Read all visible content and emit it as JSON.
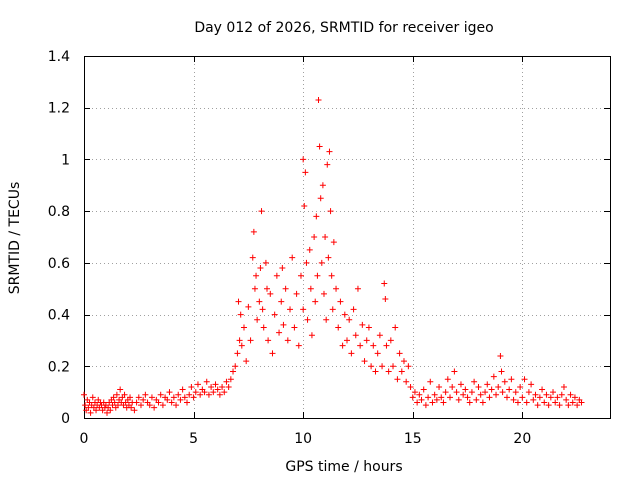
{
  "chart_data": {
    "type": "scatter",
    "title": "Day 012 of 2026, SRMTID for receiver igeo",
    "xlabel": "GPS time / hours",
    "ylabel": "SRMTID / TECUs",
    "xlim": [
      0,
      24
    ],
    "ylim": [
      0,
      1.4
    ],
    "xticks": [
      0,
      5,
      10,
      15,
      20
    ],
    "yticks": [
      0,
      0.2,
      0.4,
      0.6,
      0.8,
      1,
      1.2,
      1.4
    ],
    "xtick_labels": [
      "0",
      "5",
      "10",
      "15",
      "20"
    ],
    "ytick_labels": [
      "0",
      "0.2",
      "0.4",
      "0.6",
      "0.8",
      "1",
      "1.2",
      "1.4"
    ],
    "grid": true,
    "marker": "+",
    "color": "#ff0000",
    "series": [
      {
        "name": "SRMTID",
        "points": [
          [
            0.0,
            0.09
          ],
          [
            0.05,
            0.05
          ],
          [
            0.1,
            0.03
          ],
          [
            0.15,
            0.07
          ],
          [
            0.2,
            0.04
          ],
          [
            0.25,
            0.06
          ],
          [
            0.3,
            0.02
          ],
          [
            0.35,
            0.05
          ],
          [
            0.4,
            0.08
          ],
          [
            0.45,
            0.04
          ],
          [
            0.5,
            0.06
          ],
          [
            0.55,
            0.03
          ],
          [
            0.6,
            0.05
          ],
          [
            0.65,
            0.07
          ],
          [
            0.7,
            0.04
          ],
          [
            0.75,
            0.06
          ],
          [
            0.8,
            0.05
          ],
          [
            0.85,
            0.03
          ],
          [
            0.9,
            0.06
          ],
          [
            0.95,
            0.04
          ],
          [
            1.0,
            0.05
          ],
          [
            1.05,
            0.02
          ],
          [
            1.1,
            0.04
          ],
          [
            1.15,
            0.06
          ],
          [
            1.2,
            0.03
          ],
          [
            1.25,
            0.07
          ],
          [
            1.3,
            0.05
          ],
          [
            1.35,
            0.08
          ],
          [
            1.4,
            0.06
          ],
          [
            1.45,
            0.04
          ],
          [
            1.5,
            0.09
          ],
          [
            1.55,
            0.05
          ],
          [
            1.6,
            0.07
          ],
          [
            1.65,
            0.11
          ],
          [
            1.7,
            0.06
          ],
          [
            1.75,
            0.08
          ],
          [
            1.8,
            0.05
          ],
          [
            1.85,
            0.09
          ],
          [
            1.9,
            0.06
          ],
          [
            1.95,
            0.04
          ],
          [
            2.0,
            0.07
          ],
          [
            2.05,
            0.05
          ],
          [
            2.1,
            0.08
          ],
          [
            2.15,
            0.04
          ],
          [
            2.2,
            0.06
          ],
          [
            2.3,
            0.03
          ],
          [
            2.4,
            0.06
          ],
          [
            2.5,
            0.08
          ],
          [
            2.6,
            0.05
          ],
          [
            2.7,
            0.07
          ],
          [
            2.8,
            0.09
          ],
          [
            2.9,
            0.06
          ],
          [
            3.0,
            0.05
          ],
          [
            3.1,
            0.08
          ],
          [
            3.2,
            0.04
          ],
          [
            3.3,
            0.07
          ],
          [
            3.4,
            0.06
          ],
          [
            3.5,
            0.09
          ],
          [
            3.6,
            0.05
          ],
          [
            3.7,
            0.08
          ],
          [
            3.8,
            0.07
          ],
          [
            3.9,
            0.1
          ],
          [
            4.0,
            0.06
          ],
          [
            4.1,
            0.08
          ],
          [
            4.2,
            0.05
          ],
          [
            4.3,
            0.09
          ],
          [
            4.4,
            0.07
          ],
          [
            4.5,
            0.11
          ],
          [
            4.6,
            0.08
          ],
          [
            4.7,
            0.06
          ],
          [
            4.8,
            0.09
          ],
          [
            4.9,
            0.12
          ],
          [
            5.0,
            0.08
          ],
          [
            5.1,
            0.1
          ],
          [
            5.2,
            0.13
          ],
          [
            5.3,
            0.09
          ],
          [
            5.4,
            0.11
          ],
          [
            5.5,
            0.1
          ],
          [
            5.6,
            0.14
          ],
          [
            5.7,
            0.09
          ],
          [
            5.8,
            0.12
          ],
          [
            5.9,
            0.1
          ],
          [
            6.0,
            0.13
          ],
          [
            6.1,
            0.11
          ],
          [
            6.2,
            0.09
          ],
          [
            6.3,
            0.12
          ],
          [
            6.4,
            0.1
          ],
          [
            6.5,
            0.14
          ],
          [
            6.6,
            0.12
          ],
          [
            6.7,
            0.15
          ],
          [
            6.8,
            0.18
          ],
          [
            6.9,
            0.2
          ],
          [
            7.0,
            0.25
          ],
          [
            7.05,
            0.45
          ],
          [
            7.1,
            0.3
          ],
          [
            7.15,
            0.4
          ],
          [
            7.2,
            0.28
          ],
          [
            7.3,
            0.35
          ],
          [
            7.4,
            0.22
          ],
          [
            7.5,
            0.43
          ],
          [
            7.6,
            0.3
          ],
          [
            7.7,
            0.62
          ],
          [
            7.75,
            0.72
          ],
          [
            7.8,
            0.5
          ],
          [
            7.85,
            0.55
          ],
          [
            7.9,
            0.38
          ],
          [
            8.0,
            0.45
          ],
          [
            8.05,
            0.58
          ],
          [
            8.1,
            0.8
          ],
          [
            8.15,
            0.42
          ],
          [
            8.2,
            0.35
          ],
          [
            8.3,
            0.6
          ],
          [
            8.35,
            0.5
          ],
          [
            8.4,
            0.3
          ],
          [
            8.5,
            0.48
          ],
          [
            8.6,
            0.25
          ],
          [
            8.7,
            0.4
          ],
          [
            8.8,
            0.55
          ],
          [
            8.9,
            0.33
          ],
          [
            9.0,
            0.45
          ],
          [
            9.05,
            0.58
          ],
          [
            9.1,
            0.36
          ],
          [
            9.2,
            0.5
          ],
          [
            9.3,
            0.3
          ],
          [
            9.4,
            0.42
          ],
          [
            9.5,
            0.62
          ],
          [
            9.6,
            0.35
          ],
          [
            9.7,
            0.48
          ],
          [
            9.8,
            0.28
          ],
          [
            9.9,
            0.55
          ],
          [
            10.0,
            0.42
          ],
          [
            10.0,
            1.0
          ],
          [
            10.05,
            0.82
          ],
          [
            10.1,
            0.95
          ],
          [
            10.15,
            0.6
          ],
          [
            10.2,
            0.38
          ],
          [
            10.3,
            0.65
          ],
          [
            10.35,
            0.5
          ],
          [
            10.4,
            0.32
          ],
          [
            10.5,
            0.7
          ],
          [
            10.55,
            0.45
          ],
          [
            10.6,
            0.78
          ],
          [
            10.65,
            0.55
          ],
          [
            10.7,
            1.23
          ],
          [
            10.75,
            1.05
          ],
          [
            10.8,
            0.85
          ],
          [
            10.85,
            0.6
          ],
          [
            10.9,
            0.9
          ],
          [
            10.95,
            0.48
          ],
          [
            11.0,
            0.7
          ],
          [
            11.05,
            0.38
          ],
          [
            11.1,
            0.98
          ],
          [
            11.15,
            0.62
          ],
          [
            11.2,
            1.03
          ],
          [
            11.25,
            0.8
          ],
          [
            11.3,
            0.55
          ],
          [
            11.35,
            0.42
          ],
          [
            11.4,
            0.68
          ],
          [
            11.5,
            0.5
          ],
          [
            11.6,
            0.35
          ],
          [
            11.7,
            0.45
          ],
          [
            11.8,
            0.28
          ],
          [
            11.9,
            0.4
          ],
          [
            12.0,
            0.3
          ],
          [
            12.1,
            0.38
          ],
          [
            12.2,
            0.25
          ],
          [
            12.3,
            0.42
          ],
          [
            12.4,
            0.32
          ],
          [
            12.5,
            0.5
          ],
          [
            12.6,
            0.28
          ],
          [
            12.7,
            0.36
          ],
          [
            12.8,
            0.22
          ],
          [
            12.9,
            0.3
          ],
          [
            13.0,
            0.35
          ],
          [
            13.1,
            0.2
          ],
          [
            13.2,
            0.28
          ],
          [
            13.3,
            0.18
          ],
          [
            13.4,
            0.25
          ],
          [
            13.5,
            0.32
          ],
          [
            13.6,
            0.2
          ],
          [
            13.7,
            0.52
          ],
          [
            13.75,
            0.46
          ],
          [
            13.8,
            0.28
          ],
          [
            13.9,
            0.18
          ],
          [
            14.0,
            0.3
          ],
          [
            14.1,
            0.2
          ],
          [
            14.2,
            0.35
          ],
          [
            14.3,
            0.15
          ],
          [
            14.4,
            0.25
          ],
          [
            14.5,
            0.18
          ],
          [
            14.6,
            0.22
          ],
          [
            14.7,
            0.14
          ],
          [
            14.8,
            0.2
          ],
          [
            14.9,
            0.12
          ],
          [
            15.0,
            0.08
          ],
          [
            15.1,
            0.1
          ],
          [
            15.2,
            0.06
          ],
          [
            15.3,
            0.09
          ],
          [
            15.4,
            0.07
          ],
          [
            15.5,
            0.11
          ],
          [
            15.6,
            0.05
          ],
          [
            15.7,
            0.08
          ],
          [
            15.8,
            0.14
          ],
          [
            15.9,
            0.06
          ],
          [
            16.0,
            0.09
          ],
          [
            16.1,
            0.07
          ],
          [
            16.2,
            0.12
          ],
          [
            16.3,
            0.08
          ],
          [
            16.4,
            0.06
          ],
          [
            16.5,
            0.1
          ],
          [
            16.6,
            0.15
          ],
          [
            16.7,
            0.08
          ],
          [
            16.8,
            0.12
          ],
          [
            16.9,
            0.18
          ],
          [
            17.0,
            0.1
          ],
          [
            17.1,
            0.07
          ],
          [
            17.2,
            0.13
          ],
          [
            17.3,
            0.09
          ],
          [
            17.4,
            0.11
          ],
          [
            17.5,
            0.08
          ],
          [
            17.6,
            0.06
          ],
          [
            17.7,
            0.1
          ],
          [
            17.8,
            0.14
          ],
          [
            17.9,
            0.07
          ],
          [
            18.0,
            0.12
          ],
          [
            18.1,
            0.09
          ],
          [
            18.2,
            0.06
          ],
          [
            18.3,
            0.1
          ],
          [
            18.4,
            0.13
          ],
          [
            18.5,
            0.08
          ],
          [
            18.6,
            0.11
          ],
          [
            18.7,
            0.16
          ],
          [
            18.8,
            0.09
          ],
          [
            18.9,
            0.12
          ],
          [
            19.0,
            0.24
          ],
          [
            19.05,
            0.18
          ],
          [
            19.1,
            0.1
          ],
          [
            19.2,
            0.14
          ],
          [
            19.3,
            0.08
          ],
          [
            19.4,
            0.11
          ],
          [
            19.5,
            0.15
          ],
          [
            19.6,
            0.07
          ],
          [
            19.7,
            0.1
          ],
          [
            19.8,
            0.06
          ],
          [
            19.9,
            0.12
          ],
          [
            20.0,
            0.08
          ],
          [
            20.1,
            0.15
          ],
          [
            20.2,
            0.06
          ],
          [
            20.3,
            0.1
          ],
          [
            20.4,
            0.13
          ],
          [
            20.5,
            0.07
          ],
          [
            20.6,
            0.09
          ],
          [
            20.7,
            0.05
          ],
          [
            20.8,
            0.08
          ],
          [
            20.9,
            0.11
          ],
          [
            21.0,
            0.06
          ],
          [
            21.1,
            0.09
          ],
          [
            21.2,
            0.05
          ],
          [
            21.3,
            0.08
          ],
          [
            21.4,
            0.1
          ],
          [
            21.5,
            0.06
          ],
          [
            21.6,
            0.08
          ],
          [
            21.7,
            0.05
          ],
          [
            21.8,
            0.09
          ],
          [
            21.9,
            0.12
          ],
          [
            22.0,
            0.07
          ],
          [
            22.1,
            0.05
          ],
          [
            22.2,
            0.09
          ],
          [
            22.3,
            0.06
          ],
          [
            22.4,
            0.08
          ],
          [
            22.5,
            0.05
          ],
          [
            22.6,
            0.07
          ],
          [
            22.7,
            0.06
          ]
        ]
      }
    ]
  }
}
